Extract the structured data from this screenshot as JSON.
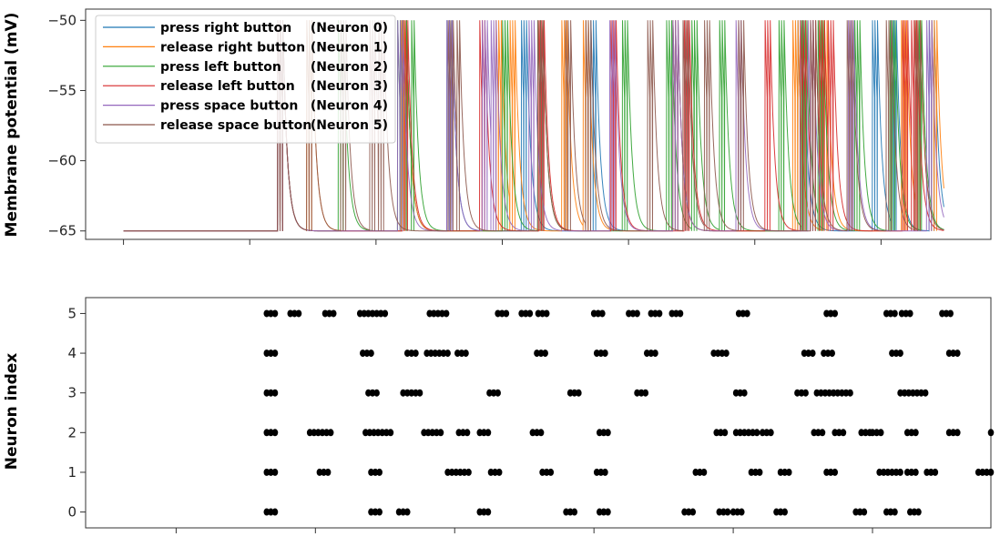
{
  "chart_data": [
    {
      "type": "line",
      "ylabel": "Membrane potential (mV)",
      "ylim": [
        -65.6,
        -49.2
      ],
      "xlim": [
        -0.3,
        6.87
      ],
      "yticks": [
        -50,
        -55,
        -60,
        -65
      ],
      "ytick_labels": [
        "−50",
        "−55",
        "−60",
        "−65"
      ],
      "xticks": [
        0,
        1,
        2,
        3,
        4,
        5,
        6
      ],
      "resting_potential": -65,
      "threshold": -50,
      "t_end": 6.5,
      "legend_position": "top-left",
      "series": [
        {
          "name": "press right button",
          "neuron_tag": "(Neuron 0)",
          "color": "#1f77b4",
          "spikes": [
            1.22,
            1.24,
            1.26,
            2.2,
            2.22,
            2.24,
            2.56,
            2.58,
            2.6,
            3.15,
            3.17,
            3.19,
            3.7,
            3.72,
            3.74,
            4.35,
            4.37,
            4.39,
            5.34,
            5.36,
            5.38,
            5.93,
            5.95,
            5.97,
            6.08,
            6.1,
            6.12,
            6.38,
            6.4,
            6.42
          ]
        },
        {
          "name": "release right button",
          "neuron_tag": "(Neuron 1)",
          "color": "#ff7f0e",
          "spikes": [
            1.22,
            1.24,
            1.26,
            1.45,
            1.47,
            1.49,
            2.2,
            2.22,
            2.24,
            2.95,
            2.97,
            2.99,
            3.06,
            3.08,
            3.1,
            3.47,
            3.49,
            3.51,
            3.64,
            3.66,
            3.68,
            4.35,
            4.37,
            4.39,
            5.3,
            5.32,
            5.34,
            5.53,
            5.55,
            5.57,
            6.16,
            6.18,
            6.2,
            6.27,
            6.29,
            6.31,
            6.4,
            6.42,
            6.44
          ]
        },
        {
          "name": "press left button",
          "neuron_tag": "(Neuron 2)",
          "color": "#2ca02c",
          "spikes": [
            1.22,
            1.24,
            1.26,
            1.7,
            1.72,
            1.74,
            2.17,
            2.19,
            2.21,
            2.24,
            2.28,
            2.3,
            3.0,
            3.02,
            3.04,
            3.28,
            3.3,
            3.32,
            3.95,
            3.97,
            3.99,
            4.3,
            4.32,
            4.34,
            4.5,
            4.52,
            4.54,
            4.72,
            4.74,
            4.76,
            5.19,
            5.21,
            5.23,
            5.37,
            5.39,
            5.41,
            5.5,
            5.52,
            5.54,
            5.79,
            5.81,
            5.83,
            6.07,
            6.09,
            6.11,
            6.3,
            6.32
          ]
        },
        {
          "name": "release left button",
          "neuron_tag": "(Neuron 3)",
          "color": "#d62728",
          "spikes": [
            1.22,
            1.24,
            1.26,
            2.21,
            2.23,
            2.25,
            2.82,
            2.84,
            2.86,
            3.29,
            3.31,
            3.33,
            3.86,
            3.88,
            3.9,
            4.44,
            4.46,
            4.48,
            5.08,
            5.1,
            5.12,
            5.36,
            5.38,
            5.4,
            5.44,
            5.46,
            5.48,
            5.51,
            5.53,
            5.55,
            5.58,
            5.6,
            5.62,
            6.17,
            6.19,
            6.21,
            6.24,
            6.26,
            6.28
          ]
        },
        {
          "name": "press space button",
          "neuron_tag": "(Neuron 4)",
          "color": "#9467bd",
          "spikes": [
            1.22,
            1.24,
            1.26,
            2.17,
            2.19,
            2.21,
            2.56,
            2.58,
            2.6,
            2.84,
            2.86,
            2.88,
            2.91,
            2.93,
            2.95,
            3.21,
            3.23,
            3.25,
            3.85,
            3.87,
            3.89,
            4.35,
            4.37,
            4.39,
            4.85,
            4.87,
            4.89,
            5.42,
            5.44,
            5.46,
            5.74,
            5.76,
            5.78,
            6.36,
            6.38,
            6.4
          ]
        },
        {
          "name": "release space button",
          "neuron_tag": "(Neuron 5)",
          "color": "#8c564b",
          "spikes": [
            1.22,
            1.24,
            1.26,
            1.45,
            1.47,
            1.49,
            1.72,
            1.74,
            1.76,
            1.95,
            1.97,
            1.99,
            2.02,
            2.04,
            2.06,
            2.57,
            2.59,
            2.61,
            2.64,
            2.66,
            3.28,
            3.3,
            3.32,
            3.5,
            3.52,
            3.54,
            3.66,
            3.68,
            3.7,
            4.15,
            4.17,
            4.19,
            4.43,
            4.45,
            4.47,
            4.6,
            4.62,
            4.64,
            4.87,
            4.89,
            4.91,
            5.44,
            5.46,
            5.48,
            5.73,
            5.75,
            5.77,
            6.04,
            6.06,
            6.08,
            6.27,
            6.29,
            6.31
          ]
        }
      ]
    },
    {
      "type": "scatter",
      "ylabel": "Neuron index",
      "ylim": [
        -0.4,
        5.4
      ],
      "xlim": [
        -0.65,
        5.85
      ],
      "yticks": [
        0,
        1,
        2,
        3,
        4,
        5
      ],
      "xticks": [
        0,
        1,
        2,
        3,
        4,
        5
      ],
      "marker_color": "#000000",
      "rows": [
        {
          "neuron": 0,
          "x": [
            0.65,
            0.68,
            0.71,
            1.4,
            1.43,
            1.46,
            1.6,
            1.63,
            1.66,
            2.18,
            2.21,
            2.24,
            2.8,
            2.83,
            2.86,
            3.04,
            3.07,
            3.1,
            3.65,
            3.68,
            3.71,
            3.9,
            3.93,
            3.96,
            4.0,
            4.03,
            4.06,
            4.31,
            4.34,
            4.37,
            4.88,
            4.91,
            4.94,
            5.1,
            5.13,
            5.16,
            5.27,
            5.3,
            5.33
          ]
        },
        {
          "neuron": 1,
          "x": [
            0.65,
            0.68,
            0.71,
            1.03,
            1.06,
            1.09,
            1.4,
            1.43,
            1.46,
            1.95,
            1.98,
            2.01,
            2.04,
            2.07,
            2.1,
            2.26,
            2.29,
            2.32,
            2.63,
            2.66,
            2.69,
            3.02,
            3.05,
            3.08,
            3.73,
            3.76,
            3.79,
            4.13,
            4.16,
            4.19,
            4.34,
            4.37,
            4.4,
            4.67,
            4.7,
            4.73,
            5.05,
            5.08,
            5.11,
            5.14,
            5.17,
            5.2,
            5.25,
            5.28,
            5.31,
            5.39,
            5.42,
            5.45,
            5.76,
            5.79,
            5.82,
            5.85
          ]
        },
        {
          "neuron": 2,
          "x": [
            0.65,
            0.68,
            0.71,
            0.96,
            0.99,
            1.02,
            1.05,
            1.08,
            1.11,
            1.36,
            1.39,
            1.42,
            1.45,
            1.48,
            1.51,
            1.54,
            1.78,
            1.81,
            1.84,
            1.87,
            1.9,
            2.03,
            2.06,
            2.09,
            2.18,
            2.21,
            2.24,
            2.56,
            2.59,
            2.62,
            3.04,
            3.07,
            3.1,
            3.88,
            3.91,
            3.94,
            4.02,
            4.05,
            4.08,
            4.11,
            4.14,
            4.17,
            4.21,
            4.24,
            4.27,
            4.58,
            4.61,
            4.64,
            4.73,
            4.76,
            4.79,
            4.92,
            4.95,
            4.98,
            5.0,
            5.03,
            5.06,
            5.25,
            5.28,
            5.31,
            5.55,
            5.58,
            5.61,
            5.85
          ]
        },
        {
          "neuron": 3,
          "x": [
            0.65,
            0.68,
            0.71,
            1.38,
            1.41,
            1.44,
            1.63,
            1.66,
            1.69,
            1.72,
            1.75,
            2.25,
            2.28,
            2.31,
            2.83,
            2.86,
            2.89,
            3.31,
            3.34,
            3.37,
            4.02,
            4.05,
            4.08,
            4.46,
            4.49,
            4.52,
            4.6,
            4.63,
            4.66,
            4.69,
            4.72,
            4.75,
            4.78,
            4.81,
            4.84,
            5.2,
            5.23,
            5.26,
            5.29,
            5.32,
            5.35,
            5.38
          ]
        },
        {
          "neuron": 4,
          "x": [
            0.65,
            0.68,
            0.71,
            1.34,
            1.37,
            1.4,
            1.66,
            1.69,
            1.72,
            1.8,
            1.83,
            1.86,
            1.89,
            1.92,
            1.95,
            2.02,
            2.05,
            2.08,
            2.59,
            2.62,
            2.65,
            3.02,
            3.05,
            3.08,
            3.38,
            3.41,
            3.44,
            3.86,
            3.89,
            3.92,
            3.95,
            4.51,
            4.54,
            4.57,
            4.65,
            4.68,
            4.71,
            5.14,
            5.17,
            5.2,
            5.55,
            5.58,
            5.61
          ]
        },
        {
          "neuron": 5,
          "x": [
            0.65,
            0.68,
            0.71,
            0.82,
            0.85,
            0.88,
            1.07,
            1.1,
            1.13,
            1.32,
            1.35,
            1.38,
            1.41,
            1.44,
            1.47,
            1.5,
            1.82,
            1.85,
            1.88,
            1.91,
            1.94,
            2.31,
            2.34,
            2.37,
            2.48,
            2.51,
            2.54,
            2.6,
            2.63,
            2.66,
            3.0,
            3.03,
            3.06,
            3.25,
            3.28,
            3.31,
            3.41,
            3.44,
            3.47,
            3.56,
            3.59,
            3.62,
            4.04,
            4.07,
            4.1,
            4.67,
            4.7,
            4.73,
            5.1,
            5.13,
            5.16,
            5.21,
            5.24,
            5.27,
            5.5,
            5.53,
            5.56
          ]
        }
      ]
    }
  ]
}
